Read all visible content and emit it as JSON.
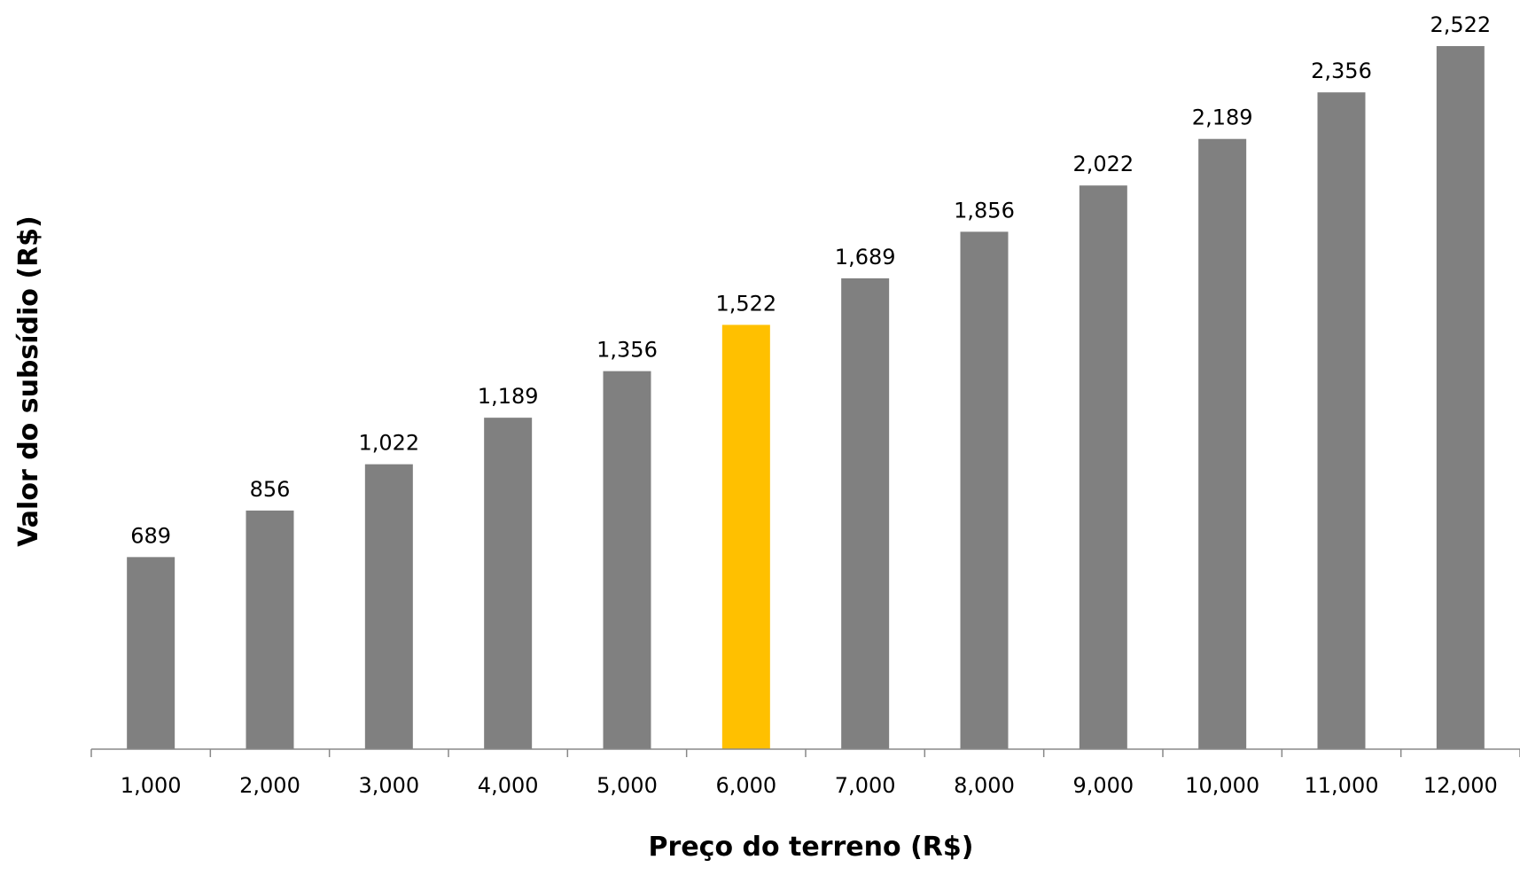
{
  "chart_data": {
    "type": "bar",
    "title": "",
    "xlabel": "Preço do terreno (R$)",
    "ylabel": "Valor do subsídio (R$)",
    "categories": [
      "1,000",
      "2,000",
      "3,000",
      "4,000",
      "5,000",
      "6,000",
      "7,000",
      "8,000",
      "9,000",
      "10,000",
      "11,000",
      "12,000"
    ],
    "values": [
      689,
      856,
      1022,
      1189,
      1356,
      1522,
      1689,
      1856,
      2022,
      2189,
      2356,
      2522
    ],
    "value_labels": [
      "689",
      "856",
      "1,022",
      "1,189",
      "1,356",
      "1,522",
      "1,689",
      "1,856",
      "2,022",
      "2,189",
      "2,356",
      "2,522"
    ],
    "highlight_index": 5,
    "bar_color": "#808080",
    "highlight_color": "#FFC000",
    "ylim": [
      0,
      2522
    ],
    "grid": false,
    "legend": "none",
    "y_axis_visible": false
  }
}
